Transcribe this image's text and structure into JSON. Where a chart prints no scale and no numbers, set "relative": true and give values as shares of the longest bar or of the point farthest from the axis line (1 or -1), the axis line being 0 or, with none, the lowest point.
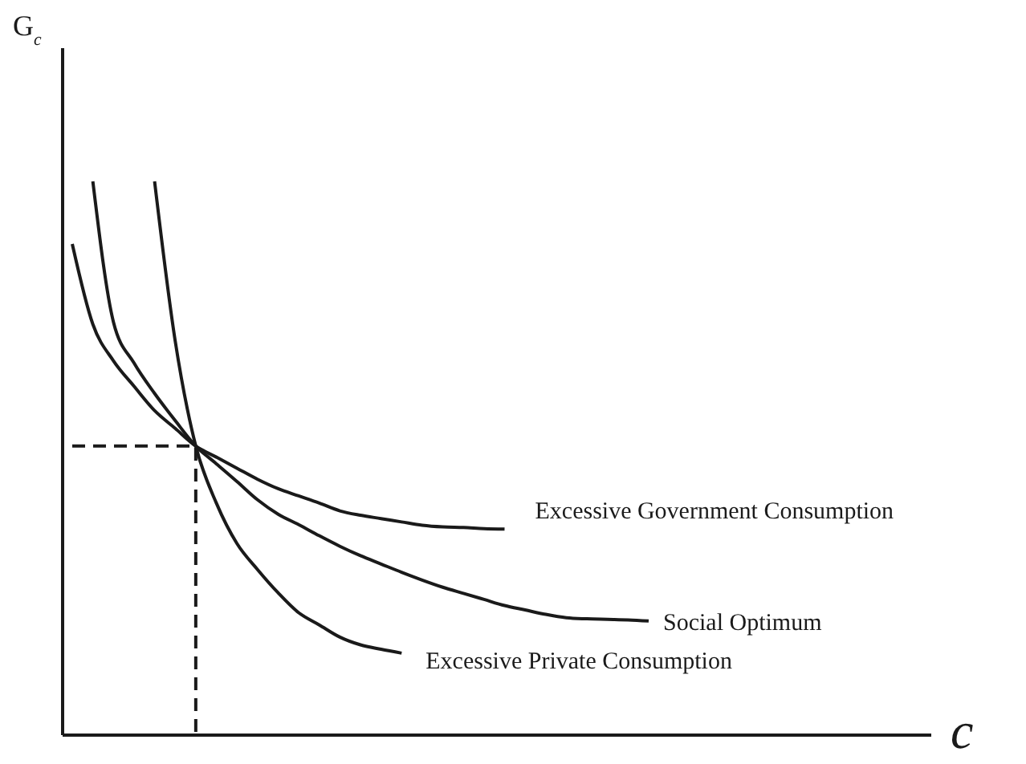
{
  "chart_data": {
    "type": "line",
    "relative": true,
    "annotations": [
      "c"
    ],
    "ylabel": "G$_{c}$",
    "marker": "none",
    "categories": [
      null,
      null,
      null,
      null,
      null,
      null,
      null,
      null,
      null,
      null,
      null,
      null,
      null,
      null,
      null,
      null,
      null,
      null,
      null,
      null,
      null,
      null,
      null,
      null,
      null,
      null,
      null,
      null,
      null
    ],
    "series": [
      {
        "name": "Excessive Government Consumption",
        "color": "#1a1a1a",
        "values": [
          0.887,
          0.742,
          0.676,
          0.63,
          0.586,
          0.554,
          0.522,
          0.502,
          0.482,
          0.462,
          0.445,
          0.432,
          0.419,
          0.405,
          0.397,
          0.391,
          0.385,
          0.379,
          0.376,
          0.375,
          0.373,
          0.372,
          null,
          null,
          null,
          null,
          null,
          null,
          null
        ]
      },
      {
        "name": "Social Optimum",
        "color": "#1a1a1a",
        "values": [
          null,
          1.0,
          0.746,
          0.672,
          0.617,
          0.568,
          0.522,
          0.49,
          0.458,
          0.425,
          0.399,
          0.38,
          0.36,
          0.341,
          0.324,
          0.309,
          0.294,
          0.28,
          0.267,
          0.256,
          0.245,
          0.234,
          0.226,
          0.218,
          0.212,
          0.21,
          0.209,
          0.208,
          0.206
        ]
      },
      {
        "name": "Excessive Private Consumption",
        "color": "#1a1a1a",
        "values": [
          null,
          null,
          null,
          null,
          1.0,
          0.712,
          0.522,
          0.419,
          0.346,
          0.299,
          0.257,
          0.221,
          0.199,
          0.177,
          0.163,
          0.155,
          0.148,
          null,
          null,
          null,
          null,
          null,
          null,
          null,
          null,
          null,
          null,
          null,
          null
        ]
      },
      {
        "type": "step",
        "color": "#1a1a1a",
        "line_style": "dashed",
        "values": [
          0.522,
          0.522,
          0.522,
          0.522,
          0.522,
          0.522,
          0,
          null,
          null,
          null,
          null,
          null,
          null,
          null,
          null,
          null,
          null,
          null,
          null,
          null,
          null,
          null,
          null,
          null,
          null,
          null,
          null,
          null,
          null
        ]
      }
    ]
  }
}
